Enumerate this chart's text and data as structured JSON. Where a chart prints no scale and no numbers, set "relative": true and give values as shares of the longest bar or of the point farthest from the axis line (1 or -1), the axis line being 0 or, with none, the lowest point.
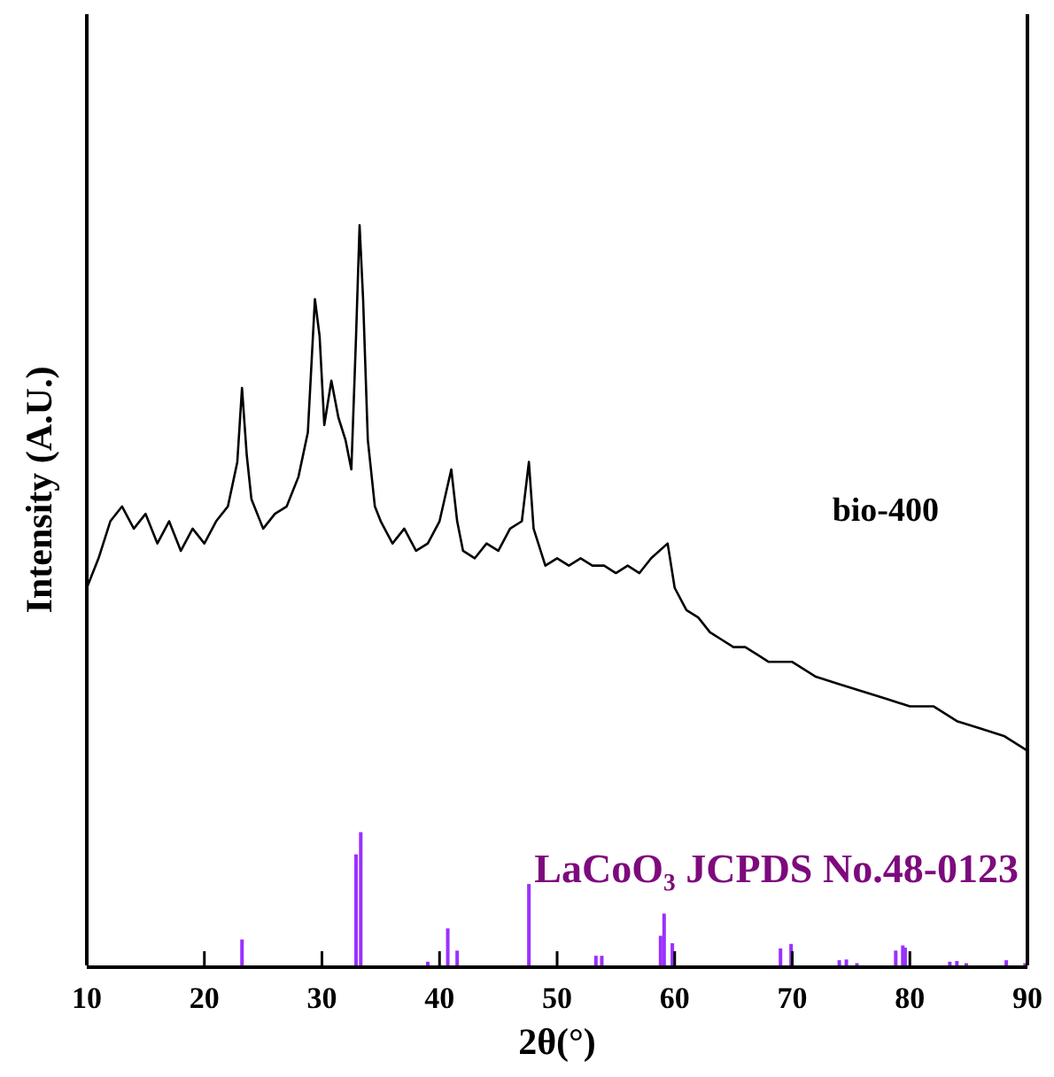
{
  "chart_data": {
    "type": "line",
    "relative": true,
    "xlabel": "2θ(°)",
    "ylabel": "Intensity (A.U.)",
    "xlim": [
      10,
      90
    ],
    "xticks": [
      10,
      20,
      30,
      40,
      50,
      60,
      70,
      80,
      90
    ],
    "grid": false,
    "line_style": "solid",
    "series": [
      {
        "name": "bio-400",
        "color": "#000000",
        "x": [
          10,
          11,
          12,
          13,
          14,
          15,
          16,
          17,
          18,
          19,
          20,
          21,
          22,
          22.8,
          23.2,
          23.6,
          24,
          25,
          26,
          27,
          28,
          28.8,
          29.4,
          29.8,
          30.2,
          30.8,
          31.4,
          32,
          32.5,
          32.9,
          33.2,
          33.5,
          33.9,
          34.5,
          35,
          36,
          37,
          38,
          39,
          40,
          41,
          41.5,
          42,
          43,
          44,
          45,
          46,
          47,
          47.6,
          48,
          49,
          50,
          51,
          52,
          53,
          54,
          55,
          56,
          57,
          58,
          59.4,
          60,
          61,
          62,
          63,
          64,
          65,
          66,
          67,
          68,
          69,
          70,
          72,
          74,
          76,
          78,
          80,
          82,
          84,
          86,
          88,
          90
        ],
        "values": [
          0.51,
          0.55,
          0.6,
          0.62,
          0.59,
          0.61,
          0.57,
          0.6,
          0.56,
          0.59,
          0.57,
          0.6,
          0.62,
          0.68,
          0.78,
          0.69,
          0.63,
          0.59,
          0.61,
          0.62,
          0.66,
          0.72,
          0.9,
          0.85,
          0.73,
          0.79,
          0.74,
          0.71,
          0.67,
          0.85,
          1.0,
          0.9,
          0.71,
          0.62,
          0.6,
          0.57,
          0.59,
          0.56,
          0.57,
          0.6,
          0.67,
          0.6,
          0.56,
          0.55,
          0.57,
          0.56,
          0.59,
          0.6,
          0.68,
          0.59,
          0.54,
          0.55,
          0.54,
          0.55,
          0.54,
          0.54,
          0.53,
          0.54,
          0.53,
          0.55,
          0.57,
          0.51,
          0.48,
          0.47,
          0.45,
          0.44,
          0.43,
          0.43,
          0.42,
          0.41,
          0.41,
          0.41,
          0.39,
          0.38,
          0.37,
          0.36,
          0.35,
          0.35,
          0.33,
          0.32,
          0.31,
          0.29
        ]
      },
      {
        "name": "LaCoO₃ JCPDS No.48-0123",
        "type": "bar",
        "color": "#9b30ff",
        "x": [
          23.2,
          32.9,
          33.3,
          39,
          40.7,
          41.5,
          47.6,
          53.3,
          53.8,
          58.8,
          59.1,
          59.8,
          69,
          69.9,
          74,
          74.6,
          75.5,
          78.8,
          79.4,
          79.6,
          83.4,
          84,
          84.8,
          88.2,
          89.8
        ],
        "values": [
          0.035,
          0.15,
          0.18,
          0.005,
          0.05,
          0.02,
          0.11,
          0.013,
          0.013,
          0.04,
          0.07,
          0.03,
          0.023,
          0.029,
          0.007,
          0.008,
          0.003,
          0.02,
          0.027,
          0.024,
          0.005,
          0.006,
          0.003,
          0.007,
          0.003
        ]
      }
    ]
  }
}
